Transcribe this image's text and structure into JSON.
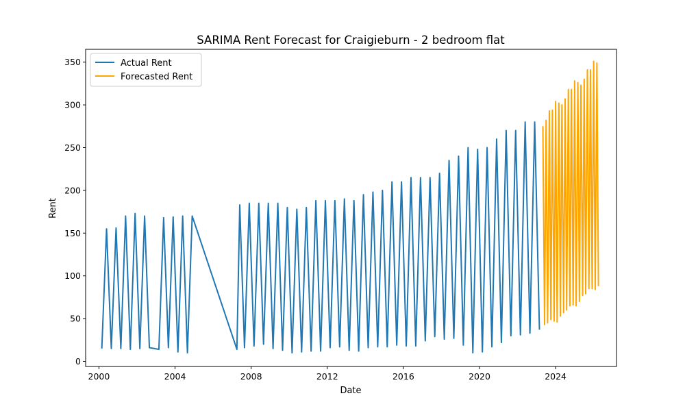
{
  "chart_data": {
    "type": "line",
    "title": "SARIMA Rent Forecast for Craigieburn - 2 bedroom flat",
    "xlabel": "Date",
    "ylabel": "Rent",
    "xlim": [
      1999.3,
      2027.2
    ],
    "ylim": [
      -6,
      365
    ],
    "xticks": [
      2000,
      2004,
      2008,
      2012,
      2016,
      2020,
      2024
    ],
    "yticks": [
      0,
      50,
      100,
      150,
      200,
      250,
      300,
      350
    ],
    "grid": false,
    "legend": "top-left",
    "series": [
      {
        "name": "Actual Rent",
        "color": "#1f77b4",
        "x": [
          2000.15,
          2000.4,
          2000.65,
          2000.9,
          2001.15,
          2001.4,
          2001.65,
          2001.9,
          2002.15,
          2002.4,
          2002.65,
          2003.15,
          2003.4,
          2003.65,
          2003.9,
          2004.15,
          2004.4,
          2004.65,
          2004.9,
          2007.25,
          2007.4,
          2007.65,
          2007.9,
          2008.15,
          2008.4,
          2008.65,
          2008.9,
          2009.15,
          2009.4,
          2009.65,
          2009.9,
          2010.15,
          2010.4,
          2010.65,
          2010.9,
          2011.15,
          2011.4,
          2011.65,
          2011.9,
          2012.15,
          2012.4,
          2012.65,
          2012.9,
          2013.15,
          2013.4,
          2013.65,
          2013.9,
          2014.15,
          2014.4,
          2014.65,
          2014.9,
          2015.15,
          2015.4,
          2015.65,
          2015.9,
          2016.15,
          2016.4,
          2016.65,
          2016.9,
          2017.15,
          2017.4,
          2017.65,
          2017.9,
          2018.15,
          2018.4,
          2018.65,
          2018.9,
          2019.15,
          2019.4,
          2019.65,
          2019.9,
          2020.15,
          2020.4,
          2020.65,
          2020.9,
          2021.15,
          2021.4,
          2021.65,
          2021.9,
          2022.15,
          2022.4,
          2022.65,
          2022.9,
          2023.15
        ],
        "y": [
          15,
          155,
          15,
          156,
          15,
          170,
          14,
          173,
          15,
          170,
          16,
          14,
          168,
          16,
          169,
          11,
          170,
          10,
          170,
          14,
          183,
          16,
          185,
          18,
          185,
          20,
          185,
          15,
          185,
          13,
          180,
          10,
          178,
          11,
          180,
          12,
          188,
          12,
          188,
          16,
          188,
          17,
          190,
          13,
          188,
          12,
          195,
          16,
          198,
          17,
          200,
          17,
          210,
          19,
          210,
          18,
          215,
          18,
          215,
          24,
          215,
          29,
          220,
          26,
          235,
          27,
          240,
          19,
          250,
          10,
          248,
          11,
          250,
          17,
          260,
          22,
          270,
          30,
          270,
          31,
          280,
          33,
          280,
          37
        ]
      },
      {
        "name": "Forecasted Rent",
        "color": "#ffa500",
        "x": [
          2023.33,
          2023.42,
          2023.5,
          2023.58,
          2023.67,
          2023.75,
          2023.83,
          2023.92,
          2024.0,
          2024.08,
          2024.17,
          2024.25,
          2024.33,
          2024.42,
          2024.5,
          2024.58,
          2024.67,
          2024.75,
          2024.83,
          2024.92,
          2025.0,
          2025.08,
          2025.17,
          2025.25,
          2025.33,
          2025.42,
          2025.5,
          2025.58,
          2025.67,
          2025.75,
          2025.83,
          2025.92,
          2026.0,
          2026.08,
          2026.17,
          2026.25
        ],
        "y": [
          275,
          43,
          282,
          45,
          293,
          49,
          294,
          47,
          304,
          46,
          302,
          53,
          300,
          57,
          307,
          60,
          318,
          65,
          318,
          66,
          328,
          65,
          326,
          70,
          323,
          77,
          330,
          79,
          341,
          85,
          341,
          85,
          351,
          84,
          349,
          88
        ]
      }
    ]
  }
}
